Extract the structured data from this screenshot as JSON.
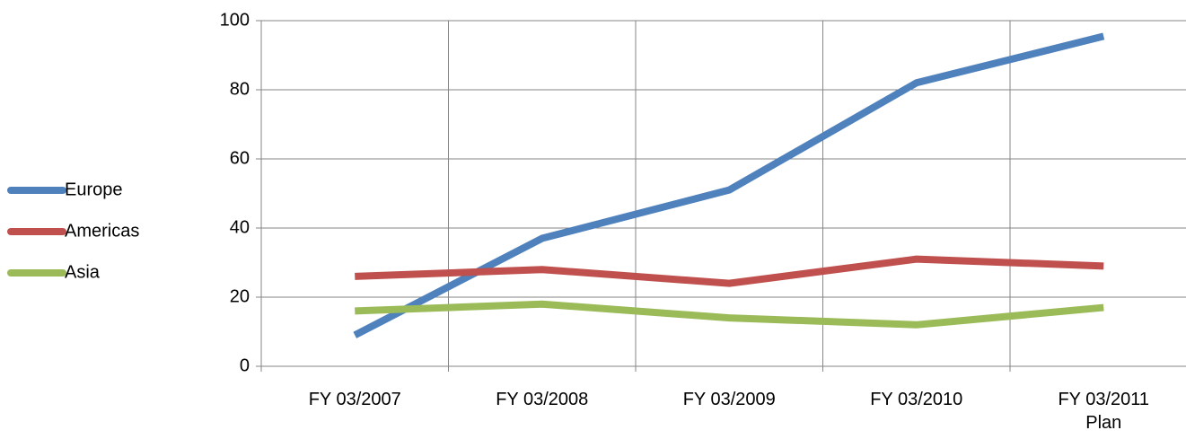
{
  "chart_data": {
    "type": "line",
    "categories": [
      "FY 03/2007",
      "FY 03/2008",
      "FY 03/2009",
      "FY 03/2010",
      "FY 03/2011 Plan"
    ],
    "series": [
      {
        "name": "Europe",
        "color": "#4f81bd",
        "values": [
          9,
          37,
          51,
          82,
          95.5
        ]
      },
      {
        "name": "Americas",
        "color": "#c0504d",
        "values": [
          26,
          28,
          24,
          31,
          29
        ]
      },
      {
        "name": "Asia",
        "color": "#9bbb59",
        "values": [
          16,
          18,
          14,
          12,
          17
        ]
      }
    ],
    "ylim": [
      0,
      100
    ],
    "yticks": [
      0,
      20,
      40,
      60,
      80,
      100
    ],
    "grid": true,
    "legend": "left"
  }
}
